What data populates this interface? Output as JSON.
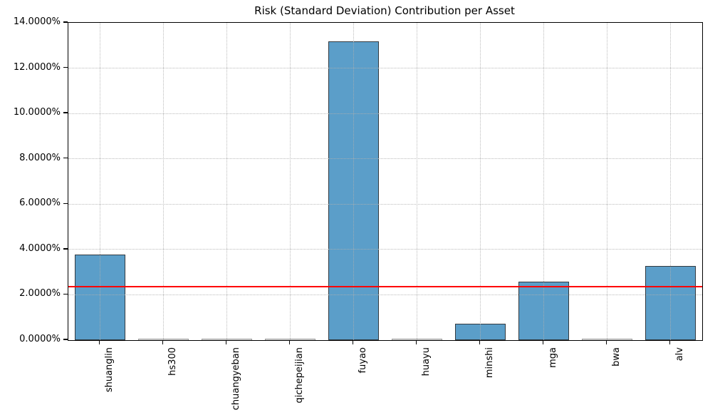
{
  "chart_data": {
    "type": "bar",
    "title": "Risk (Standard Deviation) Contribution per Asset",
    "xlabel": "",
    "ylabel": "",
    "categories": [
      "shuanglin",
      "hs300",
      "chuangyeban",
      "qichepeijian",
      "fuyao",
      "huayu",
      "minshi",
      "mga",
      "bwa",
      "alv"
    ],
    "values": [
      3.78,
      0.01,
      0.01,
      0.01,
      13.17,
      0.01,
      0.72,
      2.57,
      0.01,
      3.28
    ],
    "unit": "%",
    "ylim": [
      0,
      14
    ],
    "ytick_step": 2,
    "ytick_labels": [
      "0.0000%",
      "2.0000%",
      "4.0000%",
      "6.0000%",
      "8.0000%",
      "10.0000%",
      "12.0000%",
      "14.0000%"
    ],
    "x_tick_rotation": 90,
    "grid": true,
    "grid_style": "dotted",
    "legend": "none",
    "avg_line": {
      "value": 2.37,
      "color": "#ff0000"
    },
    "bar_fill": "#5b9ec9",
    "bar_edge": "#333a40",
    "bar_width_fraction": 0.8
  }
}
